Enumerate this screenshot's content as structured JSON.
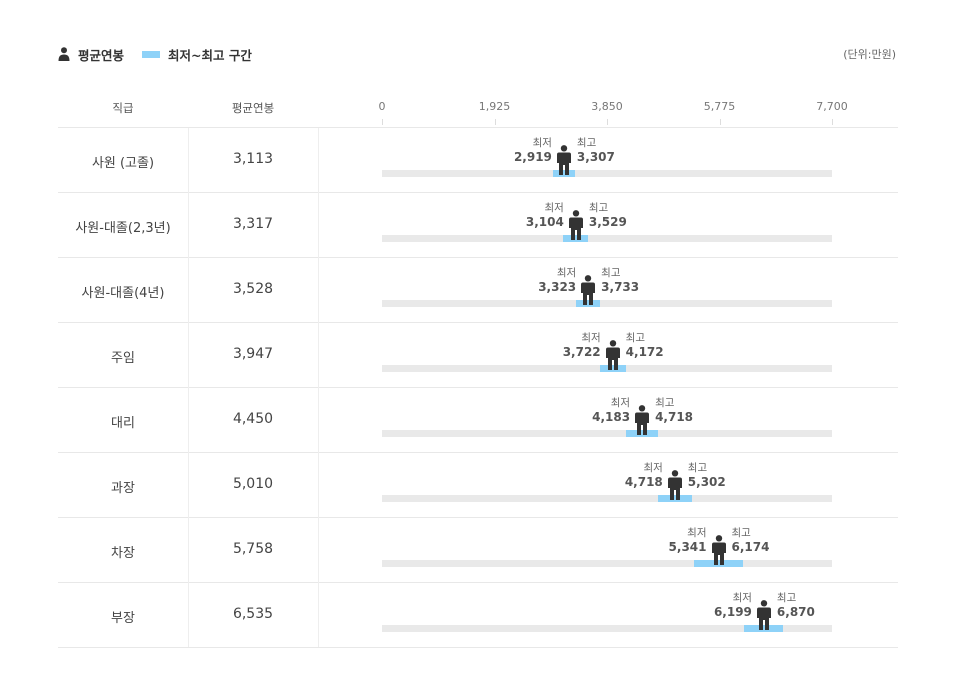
{
  "legend": {
    "avg_label": "평균연봉",
    "range_label": "최저~최고 구간",
    "avg_icon": "person-icon"
  },
  "unit_label": "(단위:만원)",
  "headers": {
    "rank": "직급",
    "avg": "평균연봉"
  },
  "colors": {
    "range": "#8ed2f8",
    "track": "#e9e9e9",
    "figure": "#333333"
  },
  "chart_data": {
    "type": "range-dot",
    "xlim": [
      0,
      7700
    ],
    "ticks": [
      "0",
      "1,925",
      "3,850",
      "5,775",
      "7,700"
    ],
    "tick_values": [
      0,
      1925,
      3850,
      5775,
      7700
    ],
    "min_caption": "최저",
    "max_caption": "최고",
    "rows": [
      {
        "rank": "사원 (고졸)",
        "avg": 3113,
        "avg_label": "3,113",
        "min": 2919,
        "min_label": "2,919",
        "max": 3307,
        "max_label": "3,307"
      },
      {
        "rank": "사원-대졸(2,3년)",
        "avg": 3317,
        "avg_label": "3,317",
        "min": 3104,
        "min_label": "3,104",
        "max": 3529,
        "max_label": "3,529"
      },
      {
        "rank": "사원-대졸(4년)",
        "avg": 3528,
        "avg_label": "3,528",
        "min": 3323,
        "min_label": "3,323",
        "max": 3733,
        "max_label": "3,733"
      },
      {
        "rank": "주임",
        "avg": 3947,
        "avg_label": "3,947",
        "min": 3722,
        "min_label": "3,722",
        "max": 4172,
        "max_label": "4,172"
      },
      {
        "rank": "대리",
        "avg": 4450,
        "avg_label": "4,450",
        "min": 4183,
        "min_label": "4,183",
        "max": 4718,
        "max_label": "4,718"
      },
      {
        "rank": "과장",
        "avg": 5010,
        "avg_label": "5,010",
        "min": 4718,
        "min_label": "4,718",
        "max": 5302,
        "max_label": "5,302"
      },
      {
        "rank": "차장",
        "avg": 5758,
        "avg_label": "5,758",
        "min": 5341,
        "min_label": "5,341",
        "max": 6174,
        "max_label": "6,174"
      },
      {
        "rank": "부장",
        "avg": 6535,
        "avg_label": "6,535",
        "min": 6199,
        "min_label": "6,199",
        "max": 6870,
        "max_label": "6,870"
      }
    ]
  }
}
